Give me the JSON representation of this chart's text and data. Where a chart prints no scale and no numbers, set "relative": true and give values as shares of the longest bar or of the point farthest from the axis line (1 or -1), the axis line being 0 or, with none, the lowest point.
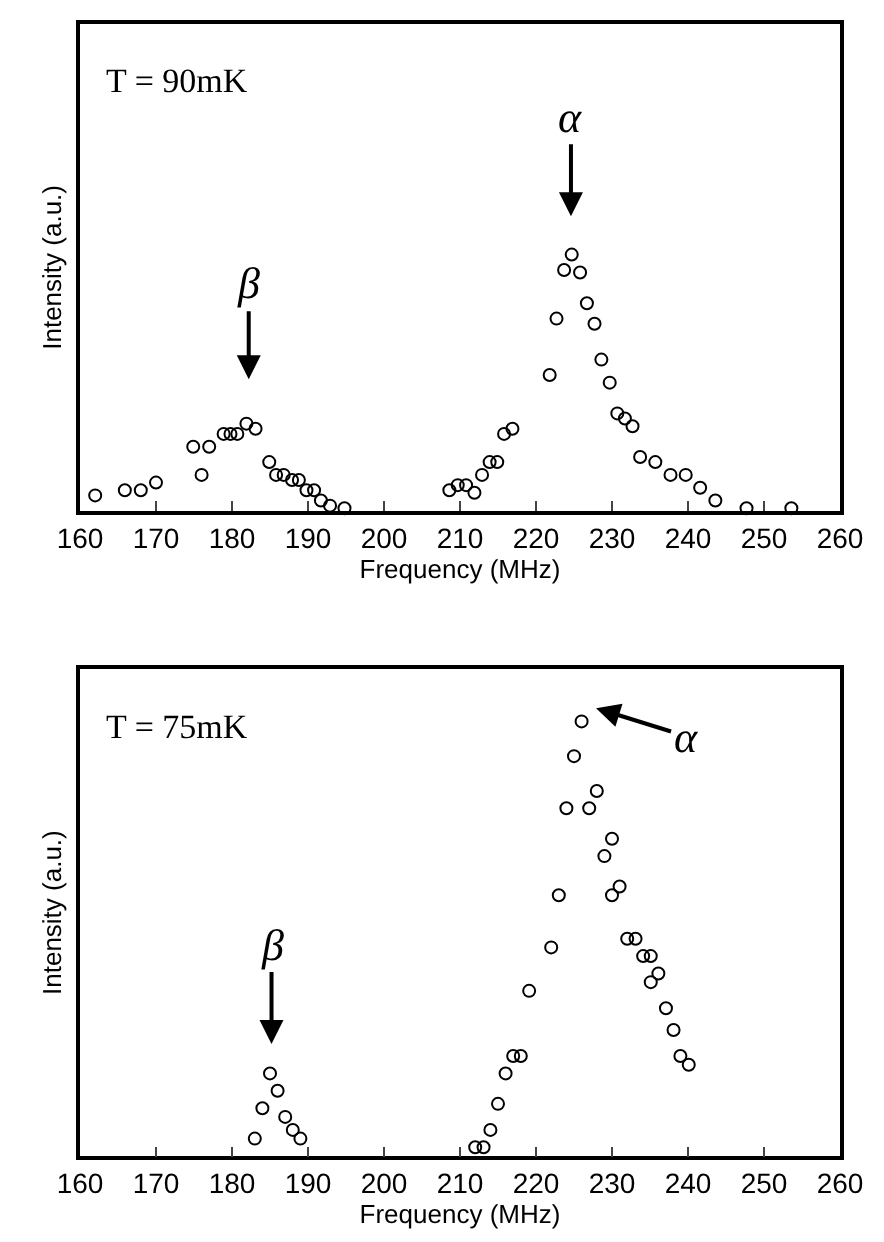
{
  "chart_data": [
    {
      "type": "scatter",
      "relative": true,
      "xlabel": "Frequency (MHz)",
      "ylabel": "Intensity (a.u.)",
      "marker": "circle",
      "tick_labels": "x",
      "xlim": [
        160,
        260
      ],
      "xticks": [
        160,
        170,
        180,
        190,
        200,
        210,
        220,
        230,
        240,
        250,
        260
      ],
      "annotations": [
        "T = 90mK",
        "α",
        "β"
      ],
      "series": [
        {
          "color": "#000000",
          "x": [
            162.0,
            165.9,
            168.0,
            170.0,
            174.9,
            176.0,
            177.0,
            178.9,
            179.8,
            180.7,
            181.9,
            183.1,
            184.9,
            185.8,
            186.8,
            187.9,
            188.8,
            189.8,
            190.8,
            191.7,
            192.9,
            194.8,
            208.6,
            209.7,
            210.8,
            211.9,
            212.9,
            213.9,
            214.9,
            215.8,
            216.9,
            221.8,
            222.7,
            223.7,
            224.7,
            225.8,
            226.7,
            227.7,
            228.6,
            229.7,
            230.7,
            231.7,
            232.7,
            233.7,
            235.7,
            237.7,
            239.7,
            241.6,
            243.6,
            247.7,
            253.6
          ],
          "values": [
            0.06,
            0.08,
            0.08,
            0.11,
            0.25,
            0.14,
            0.25,
            0.3,
            0.3,
            0.3,
            0.34,
            0.32,
            0.19,
            0.14,
            0.14,
            0.12,
            0.12,
            0.08,
            0.08,
            0.04,
            0.02,
            0.01,
            0.08,
            0.1,
            0.1,
            0.07,
            0.14,
            0.19,
            0.19,
            0.3,
            0.32,
            0.53,
            0.75,
            0.94,
            1.0,
            0.93,
            0.81,
            0.73,
            0.59,
            0.5,
            0.38,
            0.36,
            0.33,
            0.21,
            0.19,
            0.14,
            0.14,
            0.09,
            0.04,
            0.01,
            0.01
          ]
        }
      ]
    },
    {
      "type": "scatter",
      "relative": true,
      "xlabel": "Frequency (MHz)",
      "ylabel": "Intensity (a.u.)",
      "marker": "circle",
      "tick_labels": "x",
      "xlim": [
        160,
        260
      ],
      "xticks": [
        160,
        170,
        180,
        190,
        200,
        210,
        220,
        230,
        240,
        250,
        260
      ],
      "annotations": [
        "T = 75mK",
        "α",
        "β"
      ],
      "series": [
        {
          "color": "#000000",
          "x": [
            183.0,
            184.0,
            185.0,
            186.0,
            187.0,
            188.0,
            189.0,
            212.0,
            213.1,
            214.0,
            215.0,
            216.0,
            217.0,
            218.0,
            219.1,
            222.0,
            223.0,
            224.0,
            225.0,
            226.0,
            227.0,
            228.0,
            229.0,
            230.0,
            230.0,
            231.0,
            232.0,
            233.1,
            234.1,
            235.1,
            235.1,
            236.1,
            237.1,
            238.1,
            239.0,
            240.1
          ],
          "values": [
            0.04,
            0.11,
            0.19,
            0.15,
            0.09,
            0.06,
            0.04,
            0.02,
            0.02,
            0.06,
            0.12,
            0.19,
            0.23,
            0.23,
            0.38,
            0.48,
            0.6,
            0.8,
            0.92,
            1.0,
            0.8,
            0.84,
            0.69,
            0.73,
            0.6,
            0.62,
            0.5,
            0.5,
            0.46,
            0.46,
            0.4,
            0.42,
            0.34,
            0.29,
            0.23,
            0.21
          ]
        }
      ]
    }
  ]
}
